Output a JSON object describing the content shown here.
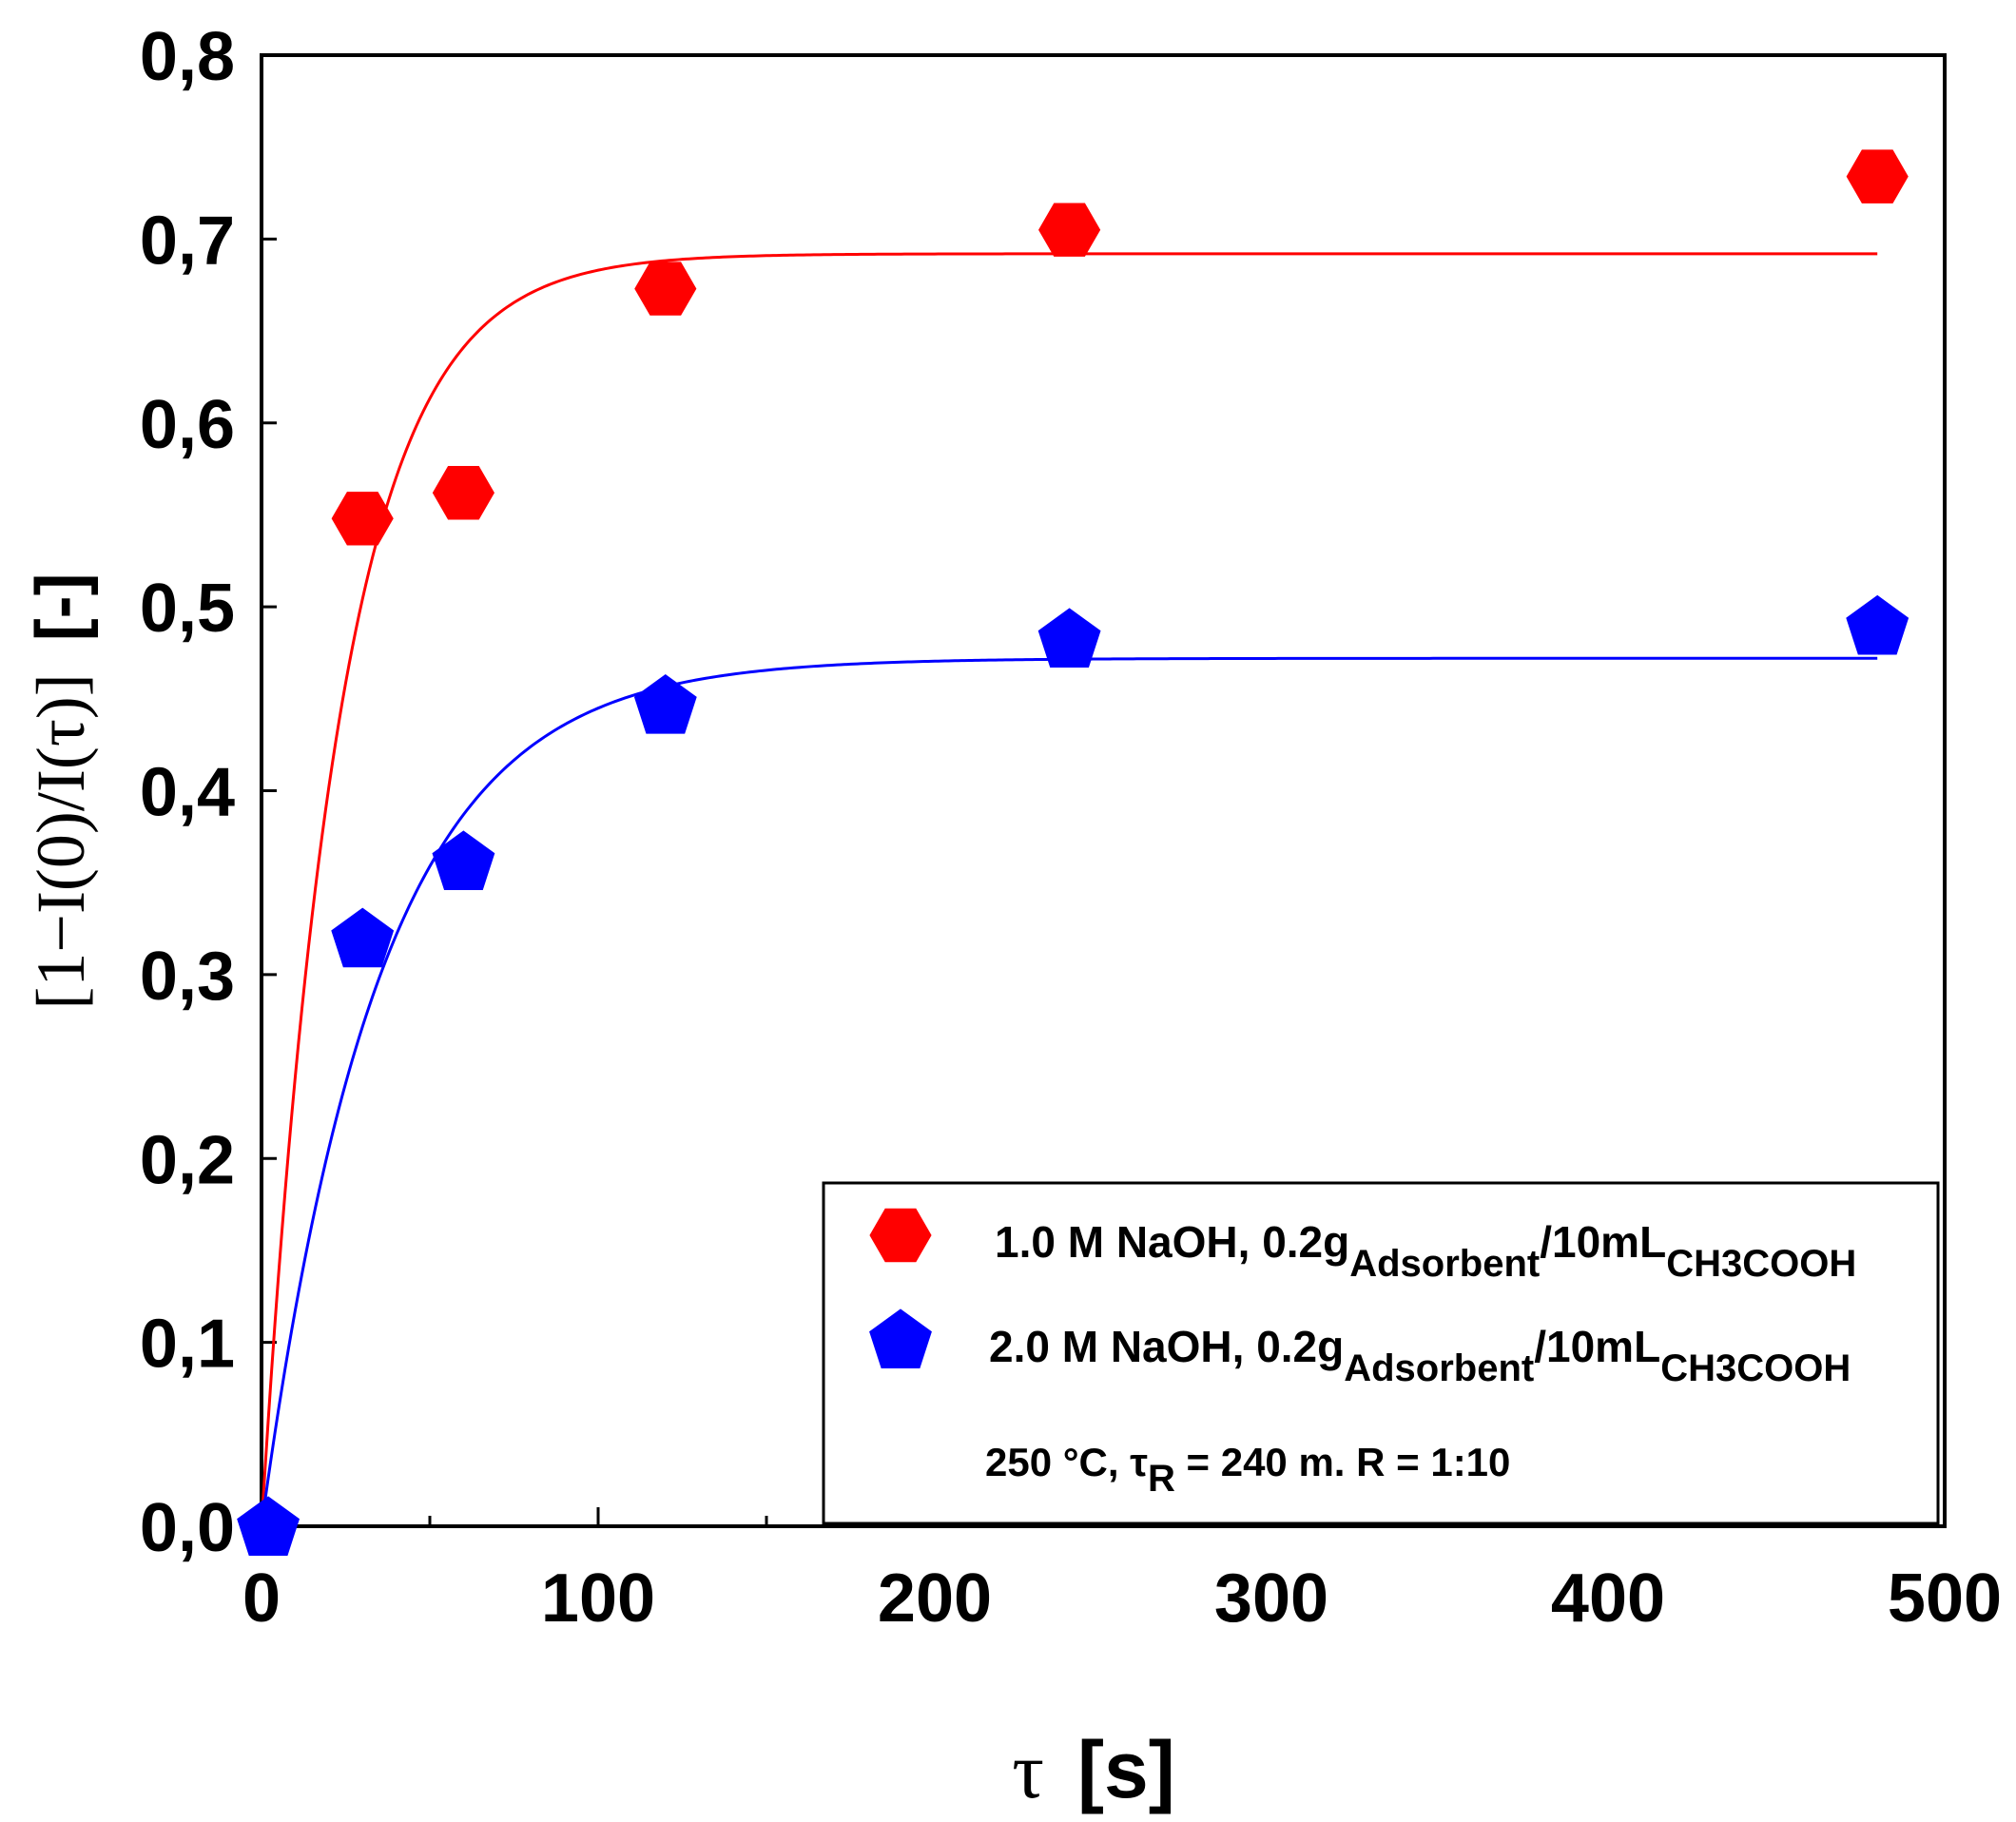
{
  "chart_data": {
    "type": "scatter",
    "title": "",
    "xlabel": {
      "symbol": "τ",
      "unit": "[s]"
    },
    "ylabel": {
      "expression": "[1−I(0)/I(τ)]",
      "unit": "[-]"
    },
    "xlim": [
      0,
      500
    ],
    "ylim": [
      0.0,
      0.8
    ],
    "x_ticks": [
      0,
      100,
      200,
      300,
      400,
      500
    ],
    "x_tick_labels": [
      "0",
      "100",
      "200",
      "300",
      "400",
      "500"
    ],
    "y_ticks": [
      0.0,
      0.1,
      0.2,
      0.3,
      0.4,
      0.5,
      0.6,
      0.7,
      0.8
    ],
    "y_tick_labels": [
      "0,0",
      "0,1",
      "0,2",
      "0,3",
      "0,4",
      "0,5",
      "0,6",
      "0,7",
      "0,8"
    ],
    "x_minor_step": 50,
    "grid": false,
    "legend_position": "bottom-right",
    "series": [
      {
        "name": "1.0 M NaOH, 0.2g Adsorbent/10mL CH3COOH",
        "legend": {
          "main": "1.0 M NaOH, 0.2g",
          "sub1": "Adsorbent",
          "mid": "/10mL",
          "sub2": "CH3COOH"
        },
        "color": "#ff0000",
        "marker": "hexagon",
        "x": [
          30,
          60,
          120,
          240,
          480
        ],
        "y": [
          0.548,
          0.562,
          0.673,
          0.705,
          0.734
        ],
        "fit": {
          "model": "asymptote*(1-exp(-x/tau))",
          "asymptote": 0.692,
          "tau": 23,
          "x_max": 480
        }
      },
      {
        "name": "2.0 M NaOH, 0.2g Adsorbent/10mL CH3COOH",
        "legend": {
          "main": "2.0 M NaOH, 0.2g",
          "sub1": "Adsorbent",
          "mid": "/10mL",
          "sub2": "CH3COOH"
        },
        "color": "#0000ff",
        "marker": "pentagon",
        "x": [
          2,
          30,
          60,
          120,
          240,
          480
        ],
        "y": [
          0.0,
          0.32,
          0.362,
          0.447,
          0.483,
          0.49
        ],
        "fit": {
          "model": "asymptote*(1-exp(-x/tau))",
          "asymptote": 0.472,
          "tau": 35,
          "x_max": 480
        }
      }
    ],
    "annotation": {
      "main": "250 °C, τ",
      "sub": "R",
      "rest": " = 240 m. R = 1:10"
    }
  }
}
